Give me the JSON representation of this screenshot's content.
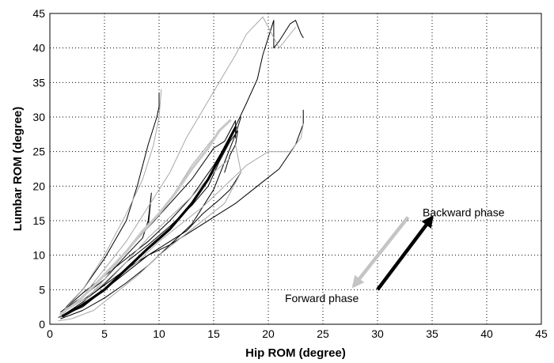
{
  "chart_data": {
    "type": "line",
    "title": "",
    "xlabel": "Hip ROM (degree)",
    "ylabel": "Lumbar ROM (degree)",
    "xlim": [
      0,
      45
    ],
    "ylim": [
      0,
      45
    ],
    "xticks": [
      0,
      5,
      10,
      15,
      20,
      25,
      30,
      35,
      40,
      45
    ],
    "yticks": [
      0,
      5,
      10,
      15,
      20,
      25,
      30,
      35,
      40,
      45
    ],
    "grid": true,
    "legend": "none",
    "series": [
      {
        "color": "#000000",
        "values": [
          [
            1.2,
            1.3
          ],
          [
            3,
            3.2
          ],
          [
            5,
            5.8
          ],
          [
            7,
            9
          ],
          [
            9,
            11.5
          ],
          [
            11,
            14.2
          ],
          [
            13,
            17.2
          ],
          [
            14.5,
            20
          ],
          [
            15.5,
            23.5
          ],
          [
            16.5,
            26.5
          ],
          [
            17.2,
            28
          ],
          [
            17,
            26
          ],
          [
            16.5,
            24.5
          ],
          [
            16,
            22
          ]
        ]
      },
      {
        "color": "#000000",
        "values": [
          [
            1.2,
            2
          ],
          [
            3,
            4.5
          ],
          [
            5,
            7
          ],
          [
            7,
            9.5
          ],
          [
            9,
            12
          ],
          [
            11,
            15
          ],
          [
            13,
            18.5
          ],
          [
            15,
            23
          ],
          [
            16.5,
            27
          ],
          [
            18,
            32
          ],
          [
            19,
            35.5
          ],
          [
            19.5,
            39
          ],
          [
            20.5,
            44
          ],
          [
            20.5,
            40
          ],
          [
            21,
            41
          ],
          [
            22,
            43.5
          ],
          [
            22.5,
            44
          ],
          [
            23,
            42
          ],
          [
            23.2,
            41.5
          ]
        ]
      },
      {
        "color": "#000000",
        "values": [
          [
            1.5,
            2.5
          ],
          [
            3,
            5
          ],
          [
            5,
            9.5
          ],
          [
            7,
            15
          ],
          [
            8,
            20
          ],
          [
            9,
            26
          ],
          [
            9.8,
            30
          ],
          [
            10,
            31.5
          ],
          [
            10,
            33.5
          ]
        ]
      },
      {
        "color": "#000000",
        "values": [
          [
            0.8,
            1
          ],
          [
            3,
            2.5
          ],
          [
            5,
            5
          ],
          [
            7,
            7.5
          ],
          [
            9,
            10
          ],
          [
            11,
            11.5
          ],
          [
            13,
            13.5
          ],
          [
            15,
            15.5
          ],
          [
            17,
            17.5
          ],
          [
            19,
            20
          ],
          [
            21,
            22.5
          ],
          [
            22.5,
            26
          ],
          [
            23.2,
            29
          ],
          [
            23.2,
            31
          ]
        ]
      },
      {
        "color": "#000000",
        "values": [
          [
            1,
            1.8
          ],
          [
            3,
            4
          ],
          [
            5,
            6.5
          ],
          [
            7,
            10
          ],
          [
            8.5,
            12.5
          ],
          [
            9,
            15
          ],
          [
            9.3,
            19
          ],
          [
            9,
            14
          ],
          [
            11,
            17.5
          ],
          [
            13,
            21
          ],
          [
            15,
            25.5
          ],
          [
            16,
            26.5
          ],
          [
            17,
            29.5
          ],
          [
            17,
            27
          ]
        ]
      },
      {
        "color": "#000000",
        "values": [
          [
            1,
            1.5
          ],
          [
            4,
            4.5
          ],
          [
            7,
            8
          ],
          [
            10,
            11
          ],
          [
            12.5,
            13.5
          ],
          [
            14,
            16
          ],
          [
            15.5,
            18
          ],
          [
            16.5,
            19.5
          ],
          [
            17.5,
            22
          ]
        ]
      },
      {
        "color": "#000000",
        "values": [
          [
            1,
            0.8
          ],
          [
            3,
            2
          ],
          [
            5,
            3.8
          ],
          [
            7,
            6
          ],
          [
            9,
            8.5
          ],
          [
            11,
            11.5
          ],
          [
            13,
            14.5
          ],
          [
            14,
            17
          ],
          [
            15,
            19.5
          ],
          [
            16,
            23.5
          ],
          [
            17,
            27.5
          ],
          [
            17.5,
            30
          ]
        ]
      },
      {
        "color": "#a8a8a8",
        "values": [
          [
            1,
            1
          ],
          [
            3,
            3
          ],
          [
            5,
            6.5
          ],
          [
            7,
            10.5
          ],
          [
            9,
            14
          ],
          [
            11,
            18
          ],
          [
            13,
            23
          ],
          [
            15,
            27
          ],
          [
            16.5,
            29.5
          ]
        ]
      },
      {
        "color": "#a8a8a8",
        "values": [
          [
            1,
            1.5
          ],
          [
            3,
            5
          ],
          [
            5,
            10
          ],
          [
            7,
            16
          ],
          [
            8.5,
            21
          ],
          [
            9.5,
            26
          ],
          [
            10,
            30
          ],
          [
            10.2,
            34
          ]
        ]
      },
      {
        "color": "#a8a8a8",
        "values": [
          [
            2,
            2
          ],
          [
            4,
            4
          ],
          [
            6,
            6.5
          ],
          [
            8,
            9
          ],
          [
            10,
            12
          ],
          [
            12,
            14.5
          ],
          [
            14,
            17
          ],
          [
            16,
            20
          ],
          [
            18,
            23
          ],
          [
            20,
            25
          ],
          [
            22,
            25
          ],
          [
            23,
            27
          ],
          [
            23.2,
            29
          ]
        ]
      },
      {
        "color": "#a8a8a8",
        "values": [
          [
            1,
            1.2
          ],
          [
            3,
            4
          ],
          [
            5,
            8
          ],
          [
            7,
            12
          ],
          [
            9,
            17
          ],
          [
            11,
            22
          ],
          [
            12.5,
            27
          ],
          [
            14,
            31
          ],
          [
            15.5,
            35
          ],
          [
            17,
            39
          ],
          [
            18,
            42
          ],
          [
            19.5,
            44.5
          ],
          [
            21,
            40
          ],
          [
            22.5,
            43
          ]
        ]
      },
      {
        "color": "#a8a8a8",
        "values": [
          [
            0.8,
            0.5
          ],
          [
            2,
            0.8
          ],
          [
            4,
            2
          ],
          [
            6,
            4.5
          ],
          [
            8,
            7
          ],
          [
            10,
            10
          ],
          [
            12,
            12.5
          ],
          [
            14,
            15
          ],
          [
            16,
            17.5
          ],
          [
            17.5,
            22
          ],
          [
            17,
            26
          ]
        ]
      },
      {
        "color": "#a8a8a8",
        "values": [
          [
            1.5,
            2
          ],
          [
            3,
            3.5
          ],
          [
            5,
            6
          ],
          [
            7,
            9
          ],
          [
            9,
            12.5
          ],
          [
            11,
            15.5
          ],
          [
            13,
            18.5
          ],
          [
            15,
            22
          ],
          [
            16.5,
            24
          ]
        ]
      },
      {
        "color": "#000000",
        "width": 3.2,
        "values": [
          [
            1.2,
            1.2
          ],
          [
            3,
            2.8
          ],
          [
            5,
            5
          ],
          [
            7,
            8
          ],
          [
            9,
            11
          ],
          [
            11,
            13.8
          ],
          [
            13,
            17.5
          ],
          [
            14.5,
            21
          ],
          [
            15.5,
            24
          ],
          [
            16.5,
            27
          ],
          [
            17,
            28.5
          ]
        ]
      },
      {
        "color": "#c8c8c8",
        "width": 3.2,
        "values": [
          [
            1,
            1.5
          ],
          [
            2.5,
            3.2
          ],
          [
            4,
            5.5
          ],
          [
            5.5,
            8
          ],
          [
            7,
            10.5
          ],
          [
            8.5,
            13.5
          ],
          [
            10,
            16
          ],
          [
            11.5,
            19
          ],
          [
            13,
            22.5
          ],
          [
            14.5,
            25.5
          ],
          [
            15.5,
            28
          ],
          [
            16.5,
            29.5
          ]
        ]
      }
    ],
    "arrows": [
      {
        "label": "Backward phase",
        "color": "#000000",
        "from": [
          30,
          5
        ],
        "to": [
          35,
          15.5
        ]
      },
      {
        "label": "Forward phase",
        "color": "#c4c4c4",
        "from": [
          32.8,
          15.5
        ],
        "to": [
          27.8,
          5.5
        ]
      }
    ]
  }
}
